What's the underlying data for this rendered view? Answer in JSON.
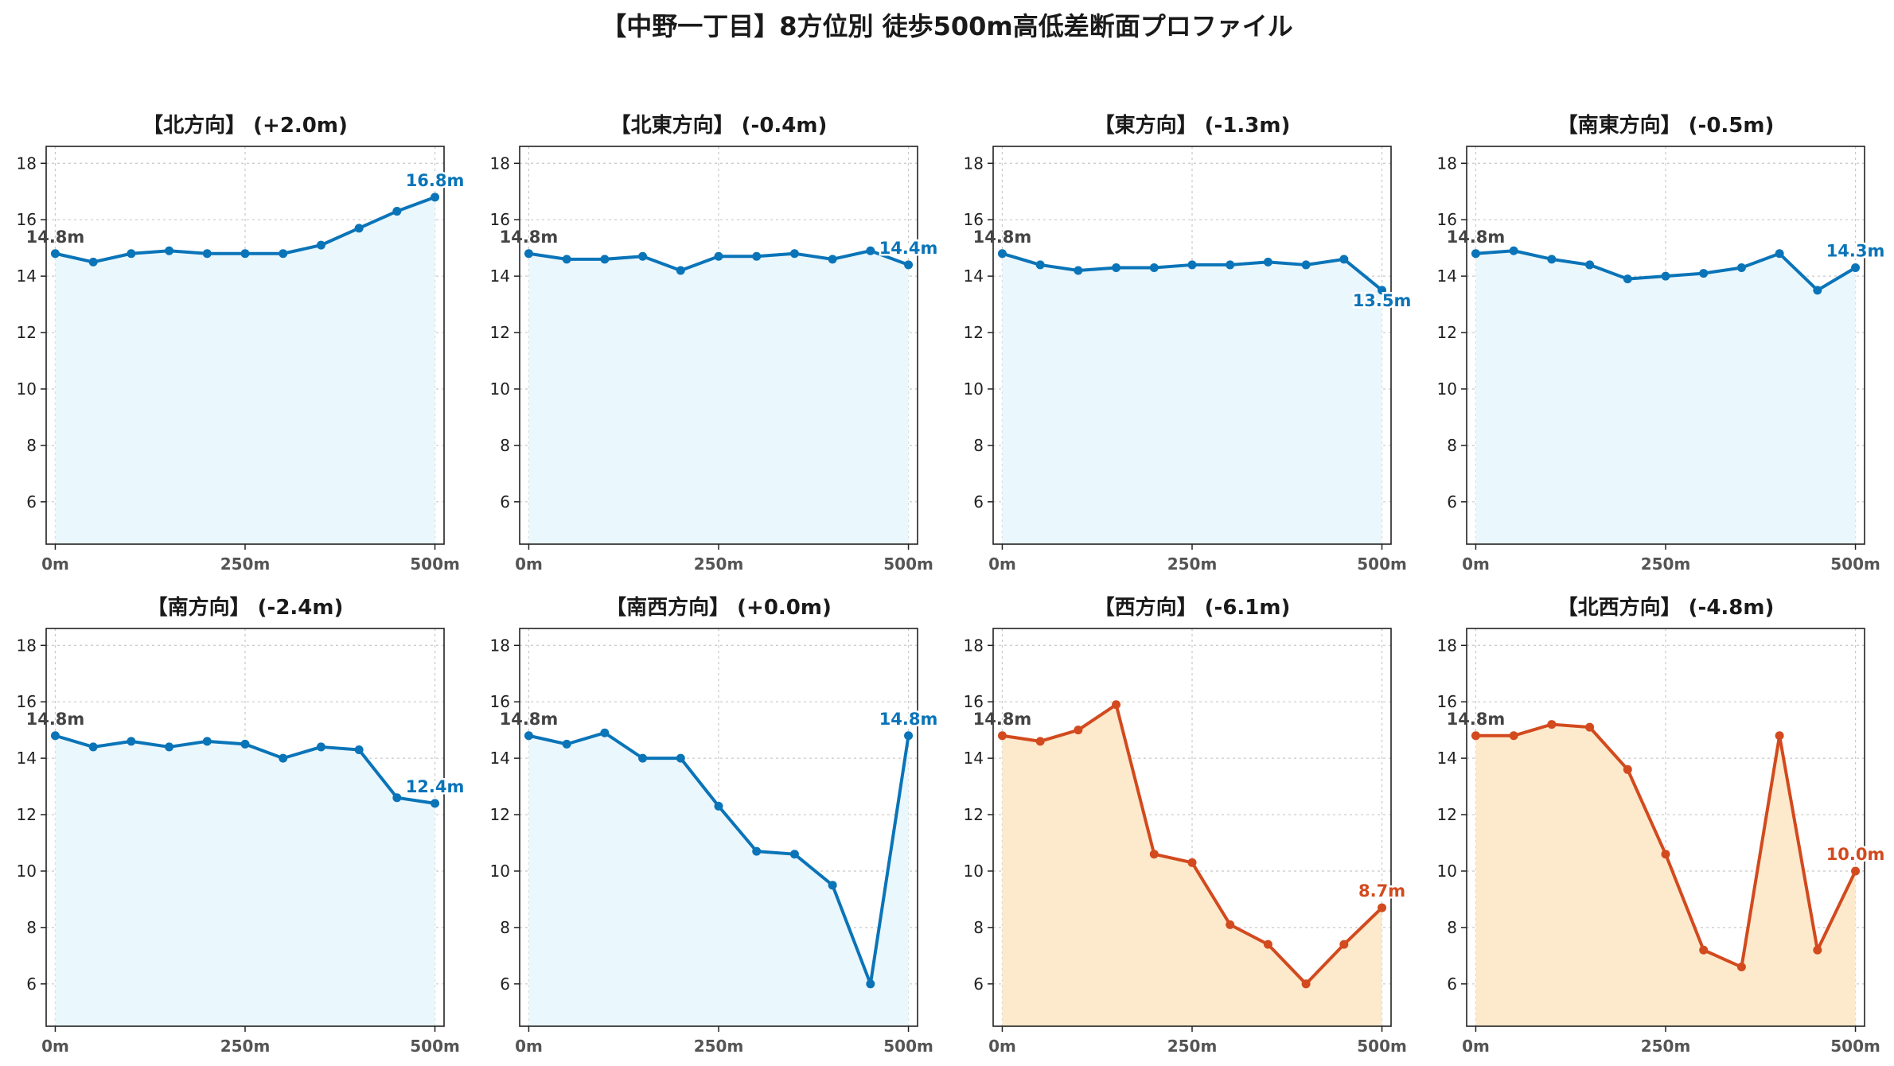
{
  "title": "【中野一丁目】8方位別 徒歩500m高低差断面プロファイル",
  "colors": {
    "up_line": "#0a74b8",
    "up_fill": "#eaf7fc",
    "down_line": "#d24a1e",
    "down_fill": "#fde9cc",
    "start_label": "#444444"
  },
  "chart_data": [
    {
      "type": "area",
      "title": "【北方向】 (+2.0m)",
      "x": [
        0,
        50,
        100,
        150,
        200,
        250,
        300,
        350,
        400,
        450,
        500
      ],
      "values": [
        14.8,
        14.5,
        14.8,
        14.9,
        14.8,
        14.8,
        14.8,
        15.1,
        15.7,
        16.3,
        16.8
      ],
      "start_label": "14.8m",
      "end_label": "16.8m",
      "color_scheme": "up",
      "xticks": [
        "0m",
        "250m",
        "500m"
      ],
      "yticks": [
        6,
        8,
        10,
        12,
        14,
        16,
        18
      ],
      "ylim": [
        4.5,
        18.6
      ],
      "xlim": [
        -12,
        512
      ],
      "grid": true
    },
    {
      "type": "area",
      "title": "【北東方向】 (-0.4m)",
      "x": [
        0,
        50,
        100,
        150,
        200,
        250,
        300,
        350,
        400,
        450,
        500
      ],
      "values": [
        14.8,
        14.6,
        14.6,
        14.7,
        14.2,
        14.7,
        14.7,
        14.8,
        14.6,
        14.9,
        14.4
      ],
      "start_label": "14.8m",
      "end_label": "14.4m",
      "color_scheme": "up",
      "xticks": [
        "0m",
        "250m",
        "500m"
      ],
      "yticks": [
        6,
        8,
        10,
        12,
        14,
        16,
        18
      ],
      "ylim": [
        4.5,
        18.6
      ],
      "xlim": [
        -12,
        512
      ],
      "grid": true
    },
    {
      "type": "area",
      "title": "【東方向】 (-1.3m)",
      "x": [
        0,
        50,
        100,
        150,
        200,
        250,
        300,
        350,
        400,
        450,
        500
      ],
      "values": [
        14.8,
        14.4,
        14.2,
        14.3,
        14.3,
        14.4,
        14.4,
        14.5,
        14.4,
        14.6,
        13.5
      ],
      "start_label": "14.8m",
      "end_label": "13.5m",
      "color_scheme": "up",
      "xticks": [
        "0m",
        "250m",
        "500m"
      ],
      "yticks": [
        6,
        8,
        10,
        12,
        14,
        16,
        18
      ],
      "ylim": [
        4.5,
        18.6
      ],
      "xlim": [
        -12,
        512
      ],
      "grid": true
    },
    {
      "type": "area",
      "title": "【南東方向】 (-0.5m)",
      "x": [
        0,
        50,
        100,
        150,
        200,
        250,
        300,
        350,
        400,
        450,
        500
      ],
      "values": [
        14.8,
        14.9,
        14.6,
        14.4,
        13.9,
        14.0,
        14.1,
        14.3,
        14.8,
        13.5,
        14.3
      ],
      "start_label": "14.8m",
      "end_label": "14.3m",
      "color_scheme": "up",
      "xticks": [
        "0m",
        "250m",
        "500m"
      ],
      "yticks": [
        6,
        8,
        10,
        12,
        14,
        16,
        18
      ],
      "ylim": [
        4.5,
        18.6
      ],
      "xlim": [
        -12,
        512
      ],
      "grid": true
    },
    {
      "type": "area",
      "title": "【南方向】 (-2.4m)",
      "x": [
        0,
        50,
        100,
        150,
        200,
        250,
        300,
        350,
        400,
        450,
        500
      ],
      "values": [
        14.8,
        14.4,
        14.6,
        14.4,
        14.6,
        14.5,
        14.0,
        14.4,
        14.3,
        12.6,
        12.4
      ],
      "start_label": "14.8m",
      "end_label": "12.4m",
      "color_scheme": "up",
      "xticks": [
        "0m",
        "250m",
        "500m"
      ],
      "yticks": [
        6,
        8,
        10,
        12,
        14,
        16,
        18
      ],
      "ylim": [
        4.5,
        18.6
      ],
      "xlim": [
        -12,
        512
      ],
      "grid": true
    },
    {
      "type": "area",
      "title": "【南西方向】 (+0.0m)",
      "x": [
        0,
        50,
        100,
        150,
        200,
        250,
        300,
        350,
        400,
        450,
        500
      ],
      "values": [
        14.8,
        14.5,
        14.9,
        14.0,
        14.0,
        12.3,
        10.7,
        10.6,
        9.5,
        6.0,
        14.8
      ],
      "start_label": "14.8m",
      "end_label": "14.8m",
      "color_scheme": "up",
      "xticks": [
        "0m",
        "250m",
        "500m"
      ],
      "yticks": [
        6,
        8,
        10,
        12,
        14,
        16,
        18
      ],
      "ylim": [
        4.5,
        18.6
      ],
      "xlim": [
        -12,
        512
      ],
      "grid": true
    },
    {
      "type": "area",
      "title": "【西方向】 (-6.1m)",
      "x": [
        0,
        50,
        100,
        150,
        200,
        250,
        300,
        350,
        400,
        450,
        500
      ],
      "values": [
        14.8,
        14.6,
        15.0,
        15.9,
        10.6,
        10.3,
        8.1,
        7.4,
        6.0,
        7.4,
        8.7
      ],
      "start_label": "14.8m",
      "end_label": "8.7m",
      "color_scheme": "down",
      "xticks": [
        "0m",
        "250m",
        "500m"
      ],
      "yticks": [
        6,
        8,
        10,
        12,
        14,
        16,
        18
      ],
      "ylim": [
        4.5,
        18.6
      ],
      "xlim": [
        -12,
        512
      ],
      "grid": true
    },
    {
      "type": "area",
      "title": "【北西方向】 (-4.8m)",
      "x": [
        0,
        50,
        100,
        150,
        200,
        250,
        300,
        350,
        400,
        450,
        500
      ],
      "values": [
        14.8,
        14.8,
        15.2,
        15.1,
        13.6,
        10.6,
        7.2,
        6.6,
        14.8,
        7.2,
        10.0
      ],
      "start_label": "14.8m",
      "end_label": "10.0m",
      "color_scheme": "down",
      "xticks": [
        "0m",
        "250m",
        "500m"
      ],
      "yticks": [
        6,
        8,
        10,
        12,
        14,
        16,
        18
      ],
      "ylim": [
        4.5,
        18.6
      ],
      "xlim": [
        -12,
        512
      ],
      "grid": true
    }
  ]
}
